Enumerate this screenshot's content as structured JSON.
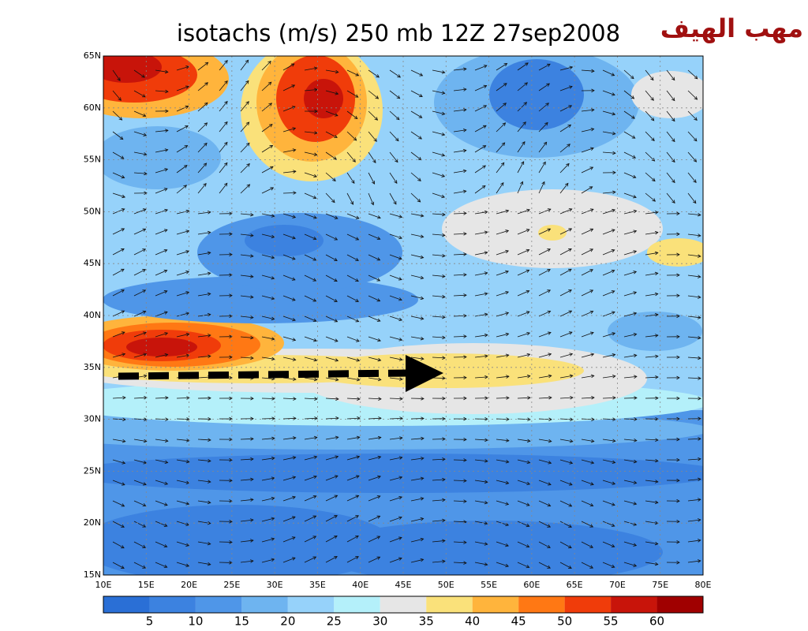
{
  "header": {
    "title": "isotachs (m/s) 250 mb 12Z 27sep2008",
    "annotation": "مهب الهيف"
  },
  "map": {
    "lat_labels": [
      "15N",
      "20N",
      "25N",
      "30N",
      "35N",
      "40N",
      "45N",
      "50N",
      "55N",
      "60N",
      "65N"
    ],
    "lon_labels": [
      "10E",
      "15E",
      "20E",
      "25E",
      "30E",
      "35E",
      "40E",
      "45E",
      "50E",
      "55E",
      "60E",
      "65E",
      "70E",
      "75E",
      "80E"
    ]
  },
  "colorbar": {
    "labels": [
      "5",
      "10",
      "15",
      "20",
      "25",
      "30",
      "35",
      "40",
      "45",
      "50",
      "55",
      "60"
    ],
    "colors": [
      "#2a6fd6",
      "#3c82e0",
      "#4f96e8",
      "#6eb4f0",
      "#96d2fa",
      "#b4f0fa",
      "#e6e6e6",
      "#fae17a",
      "#ffb43c",
      "#ff7814",
      "#f03c0a",
      "#c8140a",
      "#a00000"
    ]
  }
}
